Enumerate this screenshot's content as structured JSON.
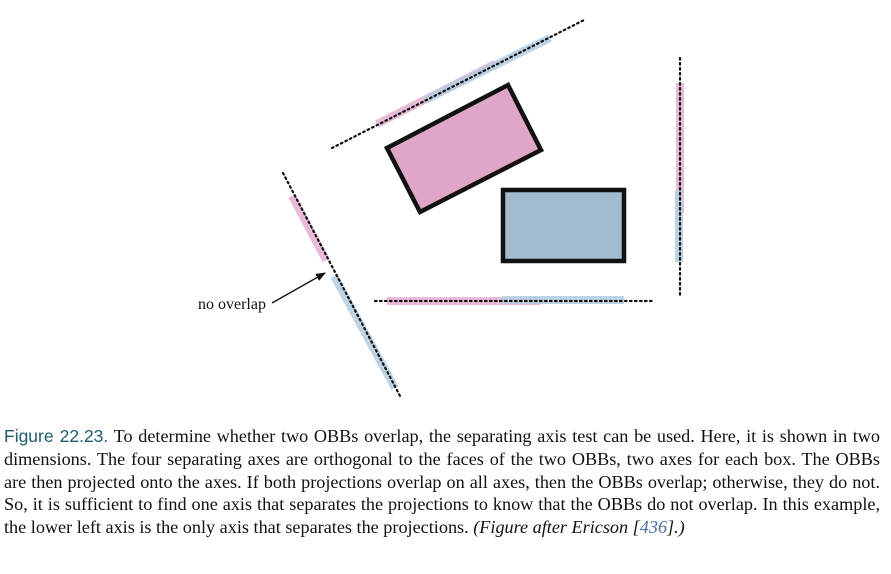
{
  "figure": {
    "annotation": "no overlap",
    "colors": {
      "box_a": "#e0a6c8",
      "box_b": "#a1bccf",
      "proj_a": "#e7b4d4",
      "proj_b": "#b7cfe0",
      "outline": "#111111"
    }
  },
  "caption": {
    "label": "Figure 22.23.",
    "text": "To determine whether two OBBs overlap, the separating axis test can be used. Here, it is shown in two dimensions. The four separating axes are orthogonal to the faces of the two OBBs, two axes for each box. The OBBs are then projected onto the axes. If both projections overlap on all axes, then the OBBs overlap; otherwise, they do not. So, it is sufficient to find one axis that separates the projections to know that the OBBs do not overlap. In this example, the lower left axis is the only axis that separates the projections.",
    "credit_prefix": "(Figure after Ericson [",
    "credit_ref": "436",
    "credit_suffix": "].)"
  }
}
